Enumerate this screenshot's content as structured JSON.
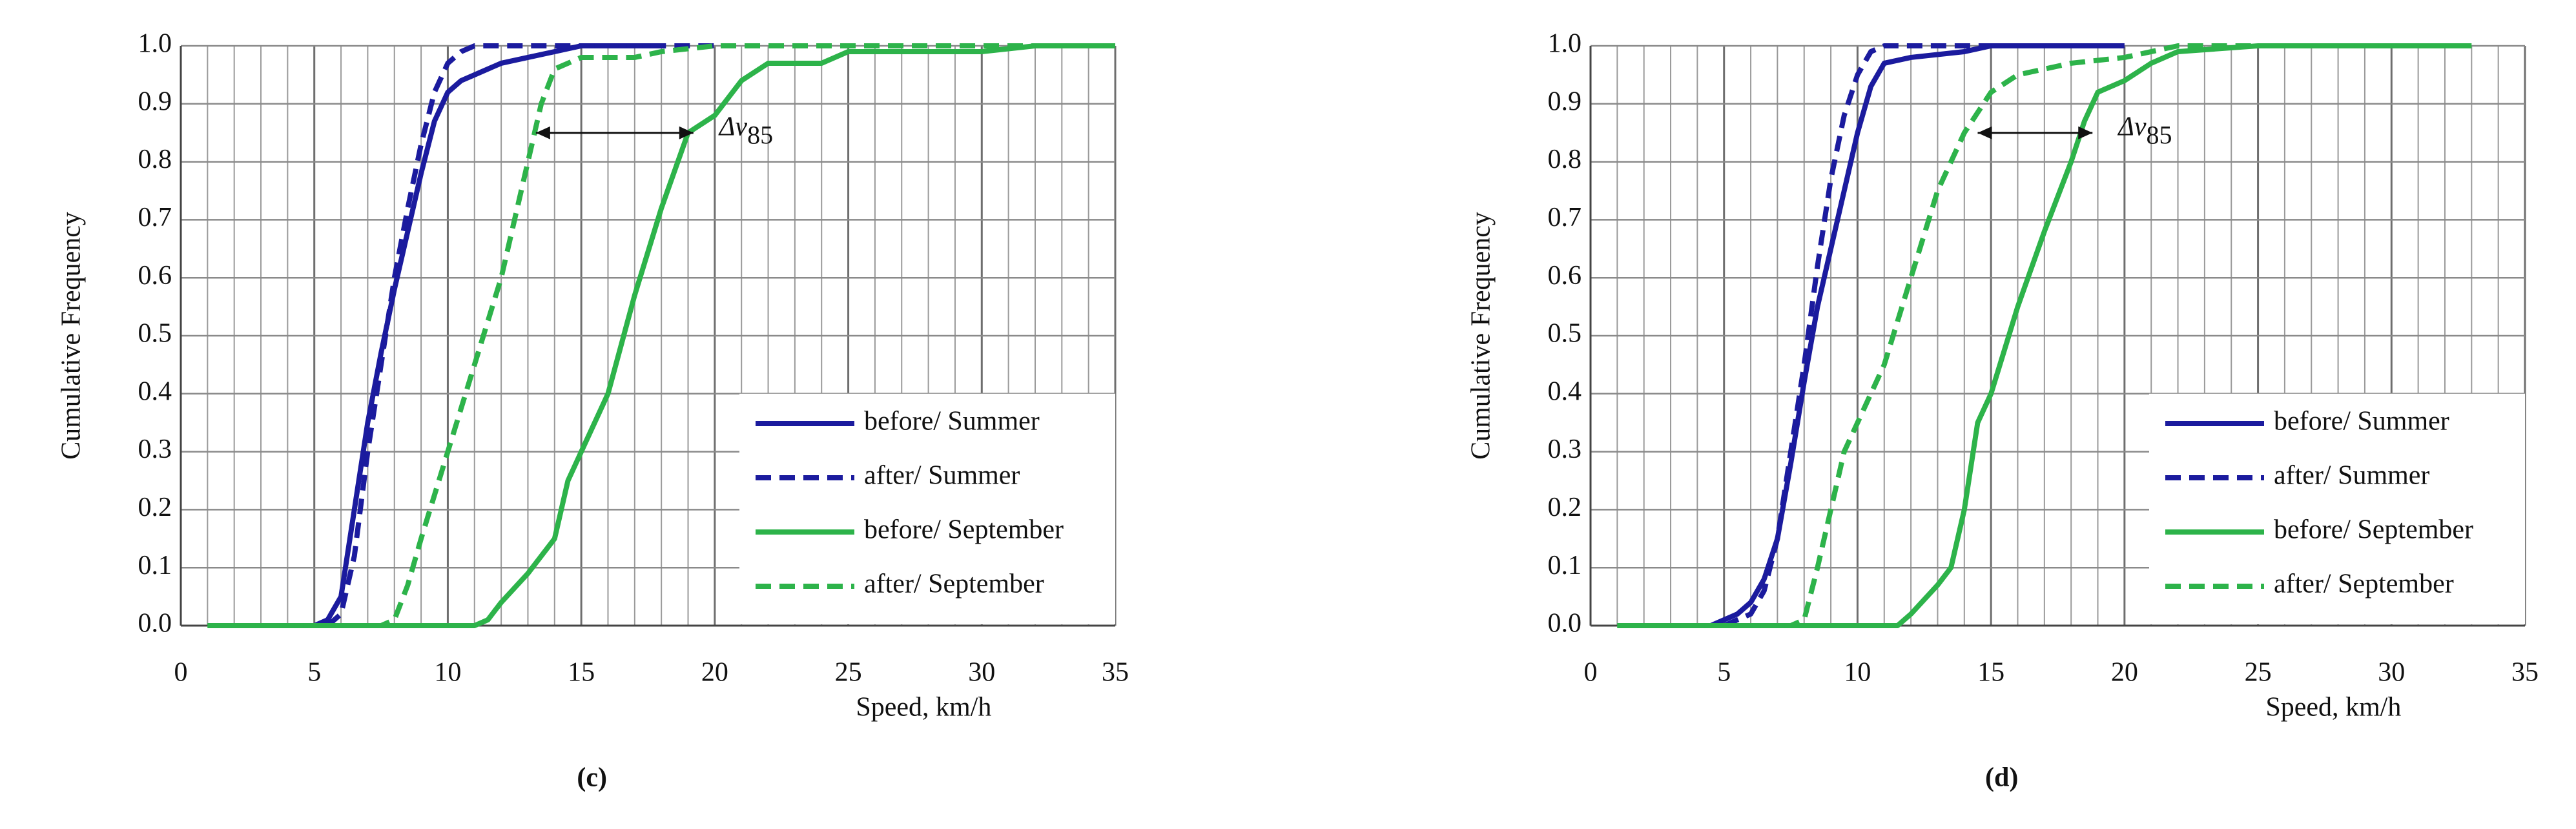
{
  "chart_data": [
    {
      "type": "line",
      "panel_label": "(c)",
      "y_label": "Cumulative Frequency",
      "x_label": "Speed, km/h",
      "annotation": "Δv",
      "annotation_subscript": "85",
      "arrow": {
        "x": [
          13.3,
          19.2
        ],
        "y": 0.85
      },
      "xlim": [
        0,
        35
      ],
      "ylim": [
        0,
        1
      ],
      "xticks": [
        0,
        5,
        10,
        15,
        20,
        25,
        30,
        35
      ],
      "yticks": [
        {
          "value": 0,
          "label": "0.0"
        },
        {
          "value": 0.1,
          "label": "0.1"
        },
        {
          "value": 0.2,
          "label": "0.2"
        },
        {
          "value": 0.3,
          "label": "0.3"
        },
        {
          "value": 0.4,
          "label": "0.4"
        },
        {
          "value": 0.5,
          "label": "0.5"
        },
        {
          "value": 0.6,
          "label": "0.6"
        },
        {
          "value": 0.7,
          "label": "0.7"
        },
        {
          "value": 0.8,
          "label": "0.8"
        },
        {
          "value": 0.9,
          "label": "0.9"
        },
        {
          "value": 1,
          "label": "1.0"
        }
      ],
      "grid": true,
      "x_minor_step": 1,
      "legend": "lower right",
      "series": [
        {
          "name": "before/ Summer",
          "color": "#1b1b9e",
          "dashed": false,
          "x": [
            5,
            5.5,
            6,
            6.5,
            7,
            7.5,
            8,
            8.5,
            9,
            9.5,
            10,
            10.5,
            11,
            12,
            13,
            14,
            15,
            18
          ],
          "values": [
            0,
            0.01,
            0.05,
            0.2,
            0.35,
            0.47,
            0.58,
            0.68,
            0.78,
            0.87,
            0.92,
            0.94,
            0.95,
            0.97,
            0.98,
            0.99,
            1,
            1
          ]
        },
        {
          "name": "after/ Summer",
          "color": "#1b1b9e",
          "dashed": true,
          "x": [
            5.5,
            6,
            6.5,
            7,
            7.5,
            8,
            8.5,
            9,
            9.5,
            10,
            10.5,
            11,
            13,
            20
          ],
          "values": [
            0,
            0.02,
            0.12,
            0.3,
            0.45,
            0.6,
            0.72,
            0.83,
            0.92,
            0.97,
            0.99,
            1,
            1,
            1
          ]
        },
        {
          "name": "before/ September",
          "color": "#2db34a",
          "dashed": false,
          "x": [
            1,
            11,
            11.5,
            12,
            13,
            14,
            14.5,
            15,
            16,
            17,
            18,
            19,
            20,
            21,
            22,
            23,
            24,
            25,
            30,
            32,
            35
          ],
          "values": [
            0,
            0,
            0.01,
            0.04,
            0.09,
            0.15,
            0.25,
            0.3,
            0.4,
            0.57,
            0.72,
            0.85,
            0.88,
            0.94,
            0.97,
            0.97,
            0.97,
            0.99,
            0.99,
            1,
            1
          ]
        },
        {
          "name": "after/ September",
          "color": "#2db34a",
          "dashed": true,
          "x": [
            1,
            7.5,
            8,
            8.5,
            9,
            10,
            11,
            12,
            13,
            13.5,
            14,
            15,
            17,
            18,
            20,
            25,
            35
          ],
          "values": [
            0,
            0,
            0.01,
            0.07,
            0.15,
            0.3,
            0.45,
            0.6,
            0.8,
            0.9,
            0.96,
            0.98,
            0.98,
            0.99,
            1,
            1,
            1
          ]
        }
      ]
    },
    {
      "type": "line",
      "panel_label": "(d)",
      "y_label": "Cumulative Frequency",
      "x_label": "Speed, km/h",
      "annotation": "Δv",
      "annotation_subscript": "85",
      "arrow": {
        "x": [
          14.5,
          18.8
        ],
        "y": 0.85
      },
      "xlim": [
        0,
        35
      ],
      "ylim": [
        0,
        1
      ],
      "xticks": [
        0,
        5,
        10,
        15,
        20,
        25,
        30,
        35
      ],
      "yticks": [
        {
          "value": 0,
          "label": "0.0"
        },
        {
          "value": 0.1,
          "label": "0.1"
        },
        {
          "value": 0.2,
          "label": "0.2"
        },
        {
          "value": 0.3,
          "label": "0.3"
        },
        {
          "value": 0.4,
          "label": "0.4"
        },
        {
          "value": 0.5,
          "label": "0.5"
        },
        {
          "value": 0.6,
          "label": "0.6"
        },
        {
          "value": 0.7,
          "label": "0.7"
        },
        {
          "value": 0.8,
          "label": "0.8"
        },
        {
          "value": 0.9,
          "label": "0.9"
        },
        {
          "value": 1,
          "label": "1.0"
        }
      ],
      "grid": true,
      "x_minor_step": 1,
      "legend": "lower right",
      "series": [
        {
          "name": "before/ Summer",
          "color": "#1b1b9e",
          "dashed": false,
          "x": [
            4.5,
            5,
            5.5,
            6,
            6.5,
            7,
            7.5,
            8,
            8.5,
            9,
            9.5,
            10,
            10.5,
            11,
            12,
            14,
            15,
            20
          ],
          "values": [
            0,
            0.01,
            0.02,
            0.04,
            0.08,
            0.15,
            0.28,
            0.42,
            0.55,
            0.65,
            0.75,
            0.85,
            0.93,
            0.97,
            0.98,
            0.99,
            1,
            1
          ]
        },
        {
          "name": "after/ Summer",
          "color": "#1b1b9e",
          "dashed": true,
          "x": [
            5,
            6,
            6.5,
            7,
            7.5,
            8,
            8.5,
            9,
            9.5,
            10,
            10.5,
            11,
            15
          ],
          "values": [
            0,
            0.02,
            0.06,
            0.15,
            0.3,
            0.45,
            0.62,
            0.77,
            0.88,
            0.95,
            0.99,
            1,
            1
          ]
        },
        {
          "name": "before/ September",
          "color": "#2db34a",
          "dashed": false,
          "x": [
            1,
            11.5,
            12,
            13,
            13.5,
            14,
            14.5,
            15,
            16,
            17,
            18,
            18.5,
            19,
            20,
            21,
            22,
            25,
            33
          ],
          "values": [
            0,
            0,
            0.02,
            0.07,
            0.1,
            0.2,
            0.35,
            0.4,
            0.55,
            0.68,
            0.8,
            0.87,
            0.92,
            0.94,
            0.97,
            0.99,
            1,
            1
          ]
        },
        {
          "name": "after/ September",
          "color": "#2db34a",
          "dashed": true,
          "x": [
            1,
            7.5,
            8,
            8.5,
            9,
            9.5,
            10,
            11,
            12,
            13,
            14,
            15,
            16,
            18,
            20,
            22,
            30
          ],
          "values": [
            0,
            0,
            0.01,
            0.1,
            0.2,
            0.3,
            0.35,
            0.45,
            0.6,
            0.75,
            0.85,
            0.92,
            0.95,
            0.97,
            0.98,
            1,
            1
          ]
        }
      ]
    }
  ]
}
